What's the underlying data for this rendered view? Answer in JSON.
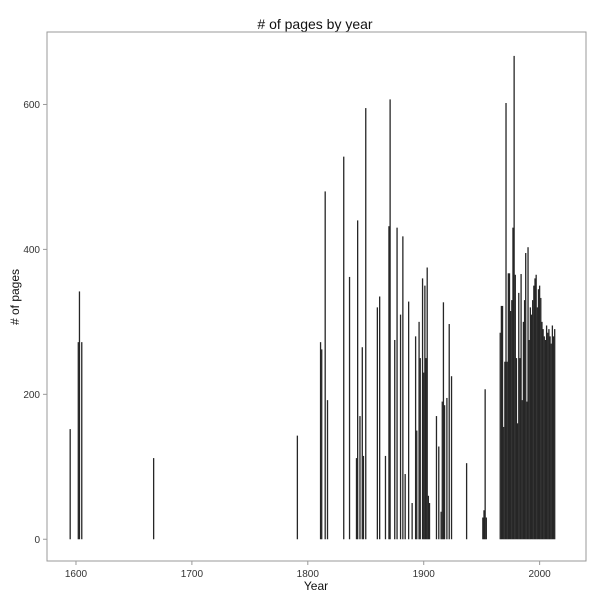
{
  "chart_data": {
    "type": "bar",
    "title": "# of pages by year",
    "xlabel": "Year",
    "ylabel": "# of pages",
    "xlim": [
      1575,
      2040
    ],
    "ylim": [
      -30,
      700
    ],
    "xticks": [
      1600,
      1700,
      1800,
      1900,
      2000
    ],
    "xtick_labels": [
      "1600",
      "1700",
      "1800",
      "1900",
      "2000"
    ],
    "yticks": [
      0,
      200,
      400,
      600
    ],
    "ytick_labels": [
      "0",
      "200",
      "400",
      "600"
    ],
    "grid": false,
    "legend": "none",
    "bar_color": "#262626",
    "x": [
      1595,
      1602,
      1603,
      1605,
      1667,
      1791,
      1811,
      1812,
      1815,
      1817,
      1831,
      1836,
      1842,
      1843,
      1845,
      1847,
      1848,
      1850,
      1860,
      1862,
      1867,
      1870,
      1871,
      1875,
      1877,
      1880,
      1882,
      1884,
      1887,
      1890,
      1893,
      1894,
      1896,
      1897,
      1899,
      1900,
      1901,
      1902,
      1903,
      1904,
      1905,
      1911,
      1913,
      1915,
      1916,
      1917,
      1918,
      1920,
      1922,
      1924,
      1937,
      1951,
      1952,
      1953,
      1954,
      1966,
      1967,
      1968,
      1969,
      1970,
      1971,
      1972,
      1973,
      1974,
      1975,
      1976,
      1977,
      1978,
      1979,
      1980,
      1981,
      1982,
      1983,
      1984,
      1985,
      1986,
      1987,
      1988,
      1989,
      1990,
      1991,
      1992,
      1993,
      1994,
      1995,
      1996,
      1997,
      1998,
      1999,
      2000,
      2001,
      2002,
      2003,
      2004,
      2005,
      2006,
      2007,
      2008,
      2009,
      2010,
      2011,
      2012,
      2013
    ],
    "values": [
      152,
      272,
      342,
      272,
      112,
      143,
      272,
      262,
      480,
      192,
      528,
      362,
      112,
      440,
      170,
      265,
      115,
      595,
      320,
      335,
      115,
      432,
      607,
      275,
      430,
      310,
      418,
      90,
      328,
      50,
      280,
      150,
      300,
      250,
      360,
      230,
      350,
      250,
      375,
      60,
      50,
      170,
      128,
      38,
      190,
      327,
      185,
      195,
      297,
      225,
      105,
      30,
      40,
      207,
      30,
      285,
      322,
      322,
      155,
      245,
      602,
      245,
      367,
      367,
      315,
      330,
      430,
      667,
      365,
      250,
      160,
      340,
      250,
      366,
      192,
      300,
      330,
      395,
      190,
      403,
      275,
      320,
      310,
      330,
      350,
      360,
      365,
      320,
      345,
      350,
      333,
      300,
      290,
      280,
      275,
      295,
      285,
      290,
      280,
      270,
      295,
      280,
      290
    ]
  }
}
